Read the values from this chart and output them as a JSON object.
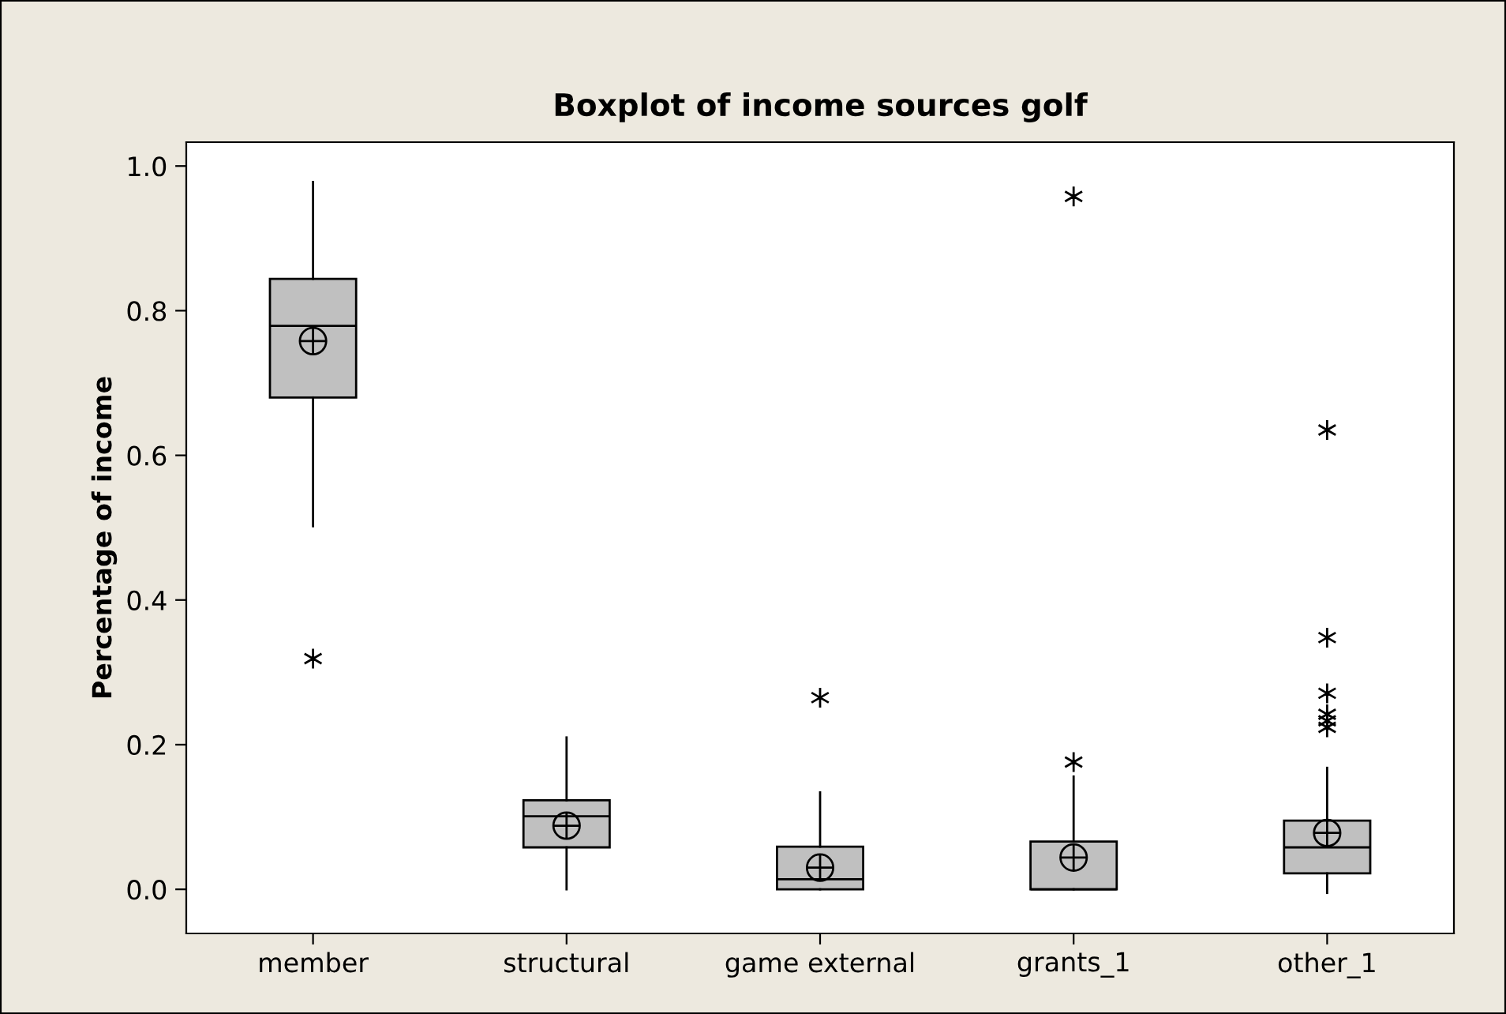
{
  "chart_data": {
    "type": "box",
    "title": "Boxplot of income sources golf",
    "ylabel": "Percentage of income",
    "categories": [
      "member",
      "structural",
      "game external",
      "grants_1",
      "other_1"
    ],
    "color": "#c0c0c0",
    "boxes": [
      {
        "low": 0.502,
        "q1": 0.68,
        "median": 0.779,
        "q3": 0.844,
        "high": 0.978,
        "mean": 0.758,
        "outliers": [
          0.319
        ]
      },
      {
        "low": 0.0,
        "q1": 0.058,
        "median": 0.101,
        "q3": 0.123,
        "high": 0.21,
        "mean": 0.088
      },
      {
        "low": 0.0,
        "q1": 0.0,
        "median": 0.014,
        "q3": 0.059,
        "high": 0.134,
        "mean": 0.03,
        "outliers": [
          0.265
        ]
      },
      {
        "low": 0.0,
        "q1": 0.0,
        "median": 0.0,
        "q3": 0.066,
        "high": 0.156,
        "mean": 0.044,
        "outliers": [
          0.176,
          0.958
        ]
      },
      {
        "low": -0.005,
        "q1": 0.022,
        "median": 0.058,
        "q3": 0.095,
        "high": 0.168,
        "mean": 0.078,
        "outliers": [
          0.224,
          0.233,
          0.242,
          0.271,
          0.348,
          0.635
        ]
      }
    ],
    "ylim": [
      -0.061,
      1.033
    ],
    "yticks": [
      {
        "value": 0,
        "label": "0.0"
      },
      {
        "value": 0.2,
        "label": "0.2"
      },
      {
        "value": 0.4,
        "label": "0.4"
      },
      {
        "value": 0.6,
        "label": "0.6"
      },
      {
        "value": 0.8,
        "label": "0.8"
      },
      {
        "value": 1,
        "label": "1.0"
      }
    ],
    "grid": false
  }
}
